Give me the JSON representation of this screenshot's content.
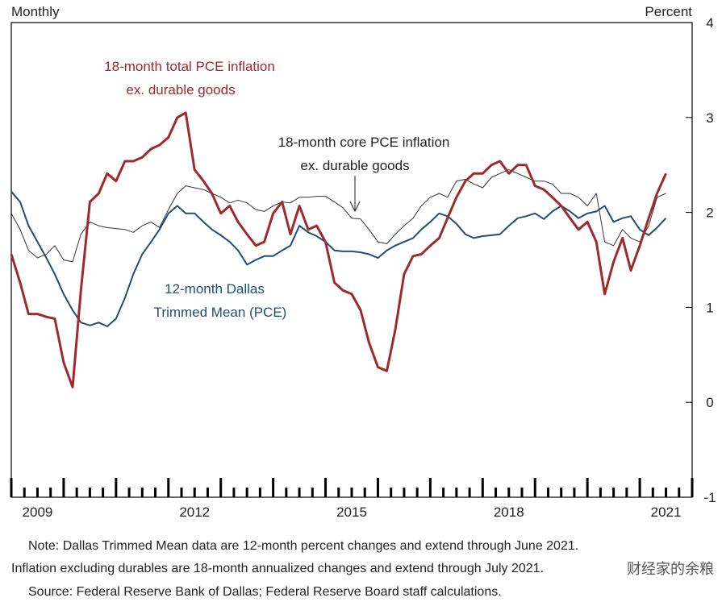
{
  "chart_data": {
    "type": "line",
    "y_axis_label_left": "Monthly",
    "y_axis_label_right": "Percent",
    "annotations": [
      "18-month total PCE inflation",
      "ex. durable goods",
      "18-month core PCE inflation",
      "ex. durable goods",
      "12-month Dallas",
      "Trimmed Mean (PCE)"
    ],
    "notes": [
      "Note:  Dallas Trimmed Mean data are 12-month percent changes and extend through June 2021.",
      "Inflation excluding durables are 18-month annualized changes and extend through July 2021.",
      "Source:  Federal Reserve Bank of Dallas; Federal Reserve Board staff calculations."
    ],
    "watermark": "财经家的余粮",
    "xlim": [
      2009,
      2022
    ],
    "ylim": [
      -1,
      4
    ],
    "yticks": [
      -1,
      0,
      1,
      2,
      3,
      4
    ],
    "xticks": [
      {
        "value": 2009.5,
        "label": "2009"
      },
      {
        "value": 2012.5,
        "label": "2012"
      },
      {
        "value": 2015.5,
        "label": "2015"
      },
      {
        "value": 2018.5,
        "label": "2018"
      },
      {
        "value": 2021.5,
        "label": "2021"
      }
    ],
    "x": [
      2009,
      2009.17,
      2009.33,
      2009.5,
      2009.67,
      2009.83,
      2010,
      2010.17,
      2010.33,
      2010.5,
      2010.67,
      2010.83,
      2011,
      2011.17,
      2011.33,
      2011.5,
      2011.67,
      2011.83,
      2012,
      2012.17,
      2012.33,
      2012.5,
      2012.67,
      2012.83,
      2013,
      2013.17,
      2013.33,
      2013.5,
      2013.67,
      2013.83,
      2014,
      2014.17,
      2014.33,
      2014.5,
      2014.67,
      2014.83,
      2015,
      2015.17,
      2015.33,
      2015.5,
      2015.67,
      2015.83,
      2016,
      2016.17,
      2016.33,
      2016.5,
      2016.67,
      2016.83,
      2017,
      2017.17,
      2017.33,
      2017.5,
      2017.67,
      2017.83,
      2018,
      2018.17,
      2018.33,
      2018.5,
      2018.67,
      2018.83,
      2019,
      2019.17,
      2019.33,
      2019.5,
      2019.67,
      2019.83,
      2020,
      2020.17,
      2020.33,
      2020.5,
      2020.67,
      2020.83,
      2021,
      2021.17,
      2021.33,
      2021.5
    ],
    "series": [
      {
        "name": "18-month core PCE inflation ex. durable goods",
        "color": "#333333",
        "width": 1,
        "values": [
          1.99,
          1.82,
          1.6,
          1.52,
          1.56,
          1.65,
          1.5,
          1.48,
          1.77,
          1.9,
          1.86,
          1.84,
          1.83,
          1.82,
          1.79,
          1.86,
          1.9,
          1.84,
          2.03,
          2.2,
          2.28,
          2.26,
          2.24,
          2.2,
          2.16,
          2.1,
          2.13,
          2.1,
          2.03,
          2.01,
          2.07,
          2.11,
          2.1,
          2.16,
          2.16,
          2.17,
          2.17,
          2.11,
          2.05,
          1.94,
          1.93,
          1.82,
          1.69,
          1.67,
          1.77,
          1.86,
          1.94,
          2.07,
          2.16,
          2.2,
          2.16,
          2.33,
          2.35,
          2.3,
          2.26,
          2.37,
          2.41,
          2.45,
          2.41,
          2.37,
          2.33,
          2.33,
          2.3,
          2.2,
          2.2,
          2.16,
          2.07,
          2.2,
          1.69,
          1.65,
          1.82,
          1.73,
          1.69,
          1.86,
          2.16,
          2.2
        ]
      },
      {
        "name": "12-month Dallas Trimmed Mean (PCE)",
        "color": "#1f4e79",
        "width": 2,
        "values": [
          2.22,
          2.11,
          1.86,
          1.69,
          1.52,
          1.35,
          1.14,
          0.97,
          0.84,
          0.81,
          0.84,
          0.8,
          0.88,
          1.1,
          1.35,
          1.56,
          1.69,
          1.82,
          1.99,
          2.07,
          1.99,
          1.99,
          1.9,
          1.82,
          1.76,
          1.69,
          1.6,
          1.45,
          1.5,
          1.54,
          1.54,
          1.6,
          1.65,
          1.86,
          1.79,
          1.75,
          1.69,
          1.6,
          1.59,
          1.59,
          1.58,
          1.56,
          1.52,
          1.6,
          1.65,
          1.69,
          1.73,
          1.82,
          1.9,
          1.99,
          1.96,
          1.88,
          1.77,
          1.73,
          1.75,
          1.76,
          1.77,
          1.86,
          1.94,
          1.96,
          1.99,
          1.93,
          2.01,
          2.07,
          2.01,
          1.94,
          1.99,
          2.01,
          2.07,
          1.9,
          1.94,
          1.96,
          1.82,
          1.76,
          1.84,
          1.94
        ]
      },
      {
        "name": "18-month total PCE inflation ex. durable goods",
        "color": "#9e2a2b",
        "width": 3,
        "values": [
          1.56,
          1.26,
          0.93,
          0.93,
          0.9,
          0.88,
          0.42,
          0.16,
          1.18,
          2.11,
          2.2,
          2.41,
          2.33,
          2.54,
          2.54,
          2.58,
          2.67,
          2.71,
          2.79,
          3.0,
          3.05,
          2.45,
          2.33,
          2.2,
          1.99,
          2.07,
          1.9,
          1.77,
          1.65,
          1.69,
          1.99,
          2.11,
          1.77,
          2.07,
          1.82,
          1.86,
          1.69,
          1.26,
          1.18,
          1.14,
          0.97,
          0.63,
          0.37,
          0.33,
          0.76,
          1.35,
          1.54,
          1.56,
          1.65,
          1.73,
          1.94,
          2.16,
          2.33,
          2.41,
          2.41,
          2.5,
          2.54,
          2.41,
          2.5,
          2.5,
          2.28,
          2.24,
          2.16,
          2.07,
          1.94,
          1.82,
          1.9,
          1.69,
          1.14,
          1.48,
          1.73,
          1.39,
          1.65,
          1.94,
          2.2,
          2.41
        ]
      }
    ]
  }
}
